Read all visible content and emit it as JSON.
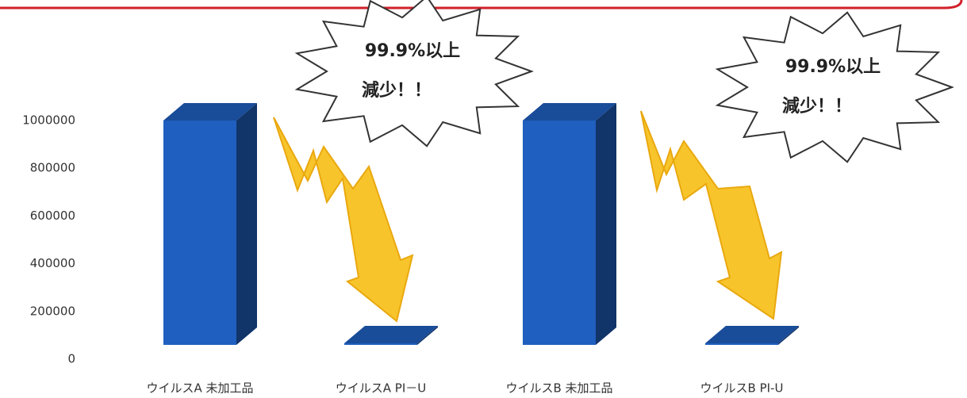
{
  "chart_data": {
    "type": "bar3d",
    "categories": [
      "ウイルスA 未加工品",
      "ウイルスA PI－U",
      "ウイルスB 未加工品",
      "ウイルスB PI-U"
    ],
    "values": [
      1000000,
      1000,
      1000000,
      1000
    ],
    "color": "#1f5fbf",
    "ylim": [
      0,
      1100000
    ],
    "yticks": [
      0,
      200000,
      400000,
      600000,
      800000,
      1000000
    ],
    "annotations": [
      [
        "99.9%以上",
        "減少！！"
      ],
      [
        "99.9%以上",
        "減少！！"
      ]
    ]
  }
}
